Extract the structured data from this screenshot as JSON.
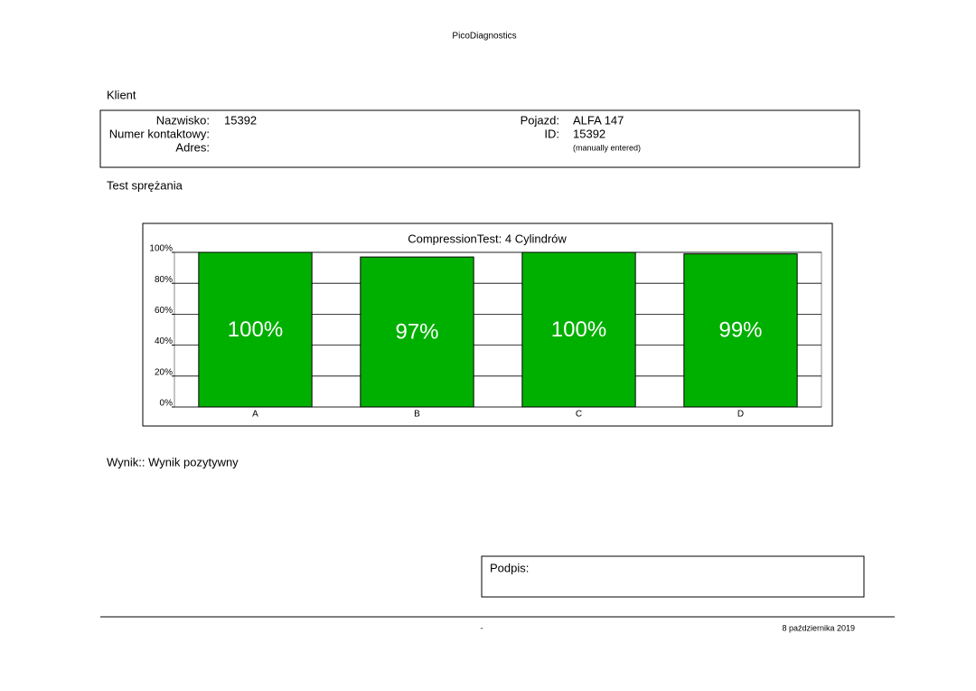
{
  "header": {
    "title": "PicoDiagnostics"
  },
  "client": {
    "heading": "Klient",
    "fields": [
      {
        "label": "Nazwisko:",
        "value": "15392"
      },
      {
        "label": "Numer kontaktowy:"
      },
      {
        "label": "Adres:"
      }
    ],
    "vehicle": [
      {
        "label": "Pojazd:",
        "value": "ALFA 147"
      },
      {
        "label": "ID:",
        "value": "15392",
        "note": "(manually entered)"
      }
    ]
  },
  "test": {
    "heading": "Test sprężania"
  },
  "chart_data": {
    "type": "bar",
    "title": "CompressionTest: 4 Cylindrów",
    "categories": [
      "A",
      "B",
      "C",
      "D"
    ],
    "values": [
      100,
      97,
      100,
      99
    ],
    "value_labels": [
      "100%",
      "97%",
      "100%",
      "99%"
    ],
    "color": "#00b000",
    "ylim": [
      0,
      100
    ],
    "yticks": [
      {
        "value": 0,
        "label": "0%"
      },
      {
        "value": 20,
        "label": "20%"
      },
      {
        "value": 40,
        "label": "40%"
      },
      {
        "value": 60,
        "label": "60%"
      },
      {
        "value": 80,
        "label": "80%"
      },
      {
        "value": 100,
        "label": "100%"
      }
    ],
    "grid": true
  },
  "result": "Wynik:: Wynik pozytywny",
  "signature": {
    "label": "Podpis:"
  },
  "footer": {
    "center": "-",
    "date": "8 października 2019"
  }
}
